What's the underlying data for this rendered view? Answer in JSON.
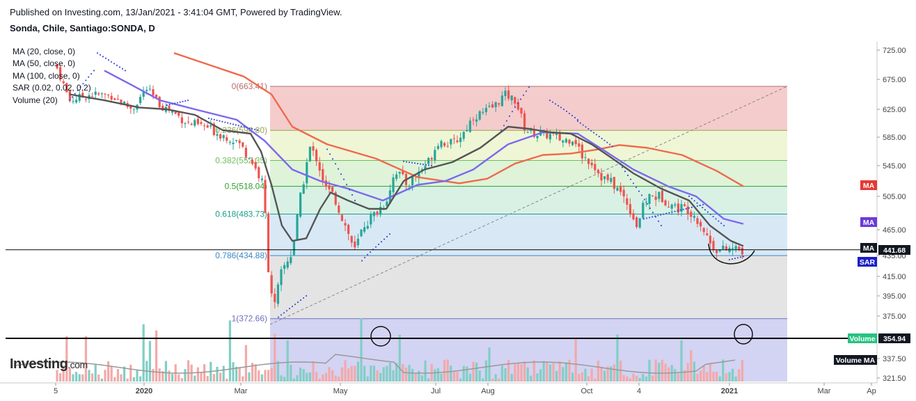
{
  "header": {
    "published": "Published on Investing.com, 13/Jan/2021 - 3:41:04 GMT, Powered by TradingView.",
    "symbol": "Sonda, Chile, Santiago:SONDA, D"
  },
  "legend": [
    "MA (20, close, 0)",
    "MA (50, close, 0)",
    "MA (100, close, 0)",
    "SAR (0.02, 0.02, 0.2)",
    "Volume (20)"
  ],
  "watermark": {
    "brand": "Investing",
    "suffix": ".com"
  },
  "colors": {
    "up_candle": "#26a69a",
    "down_candle": "#ef5350",
    "ma20": "#555555",
    "ma50": "#7b68ee",
    "ma100": "#ef6a4b",
    "sar": "#3f51d8",
    "volume_ma": "#999999",
    "vol_up": "#80cfc4",
    "vol_down": "#f3a9a9"
  },
  "chart_data": {
    "type": "candlestick",
    "x_ticks": [
      "5",
      "2020",
      "Mar",
      "May",
      "Jul",
      "Aug",
      "Oct",
      "4",
      "2021",
      "Mar",
      "Ap"
    ],
    "y_ticks": [
      "725.00",
      "675.00",
      "625.00",
      "585.00",
      "545.00",
      "505.00",
      "465.00",
      "435.00",
      "415.00",
      "395.00",
      "375.00",
      "354.94",
      "337.50",
      "321.50"
    ],
    "ylim": [
      321.5,
      725
    ],
    "fibonacci": {
      "levels": [
        {
          "ratio": 0,
          "value": 663.41,
          "label": "0(663.41)",
          "band_color": "#f4cccc",
          "line_color": "#b86b6b"
        },
        {
          "ratio": 0.236,
          "value": 594.8,
          "label": "0.236(594.80)",
          "band_color": "#eef6d6",
          "line_color": "#9aa34a"
        },
        {
          "ratio": 0.382,
          "value": 552.35,
          "label": "0.382(552.35)",
          "band_color": "#dff3d9",
          "line_color": "#6fbf5a"
        },
        {
          "ratio": 0.5,
          "value": 518.04,
          "label": "0.5(518.04)",
          "band_color": "#d9f1e5",
          "line_color": "#2ea02e"
        },
        {
          "ratio": 0.618,
          "value": 483.73,
          "label": "0.618(483.73)",
          "band_color": "#d8e9f5",
          "line_color": "#1a9e8a"
        },
        {
          "ratio": 0.786,
          "value": 434.88,
          "label": "0.786(434.88)",
          "band_color": "#e4e4e4",
          "line_color": "#3b86c4"
        },
        {
          "ratio": 1,
          "value": 372.66,
          "label": "1(372.66)",
          "band_color": "#d3d3f3",
          "line_color": "#6f6fc0"
        }
      ]
    },
    "price_tags": [
      {
        "label": "MA",
        "color": "#e53935",
        "value": 518
      },
      {
        "label": "MA",
        "color": "#6c3bd8",
        "value": 472
      },
      {
        "label": "MA",
        "color": "#131722",
        "value": 441.68
      },
      {
        "label": "441.68",
        "color": "#131722",
        "value": 441.68
      },
      {
        "label": "SAR",
        "color": "#1e1ec8",
        "value": 426
      },
      {
        "label": "Volume",
        "color": "#26c281",
        "value": 354.94
      },
      {
        "label": "354.94",
        "color": "#131722",
        "value": 354.94
      },
      {
        "label": "Volume MA",
        "color": "#131722",
        "value": 336
      }
    ],
    "horizontal_lines": [
      441.68,
      354.94
    ]
  }
}
